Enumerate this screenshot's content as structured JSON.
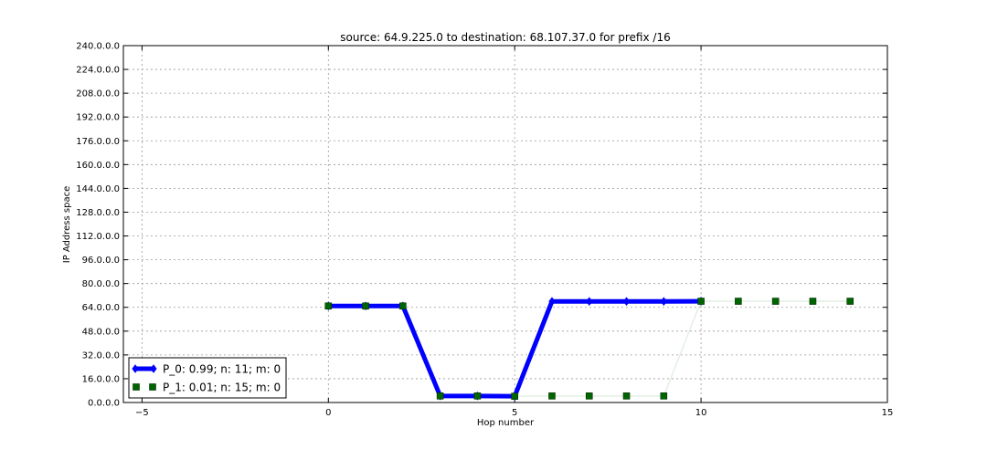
{
  "chart_data": {
    "type": "line",
    "title": "source: 64.9.225.0 to destination: 68.107.37.0 for prefix /16",
    "xlabel": "Hop number",
    "ylabel": "IP Address space",
    "xlim": [
      -5.5,
      15
    ],
    "ylim": [
      0,
      240
    ],
    "x_ticks": [
      -5,
      0,
      5,
      10,
      15
    ],
    "x_tick_labels": [
      "−5",
      "0",
      "5",
      "10",
      "15"
    ],
    "y_ticks": [
      0,
      16,
      32,
      48,
      64,
      80,
      96,
      112,
      128,
      144,
      160,
      176,
      192,
      208,
      224,
      240
    ],
    "y_tick_labels": [
      "0.0.0.0",
      "16.0.0.0",
      "32.0.0.0",
      "48.0.0.0",
      "64.0.0.0",
      "80.0.0.0",
      "96.0.0.0",
      "112.0.0.0",
      "128.0.0.0",
      "144.0.0.0",
      "160.0.0.0",
      "176.0.0.0",
      "192.0.0.0",
      "208.0.0.0",
      "224.0.0.0",
      "240.0.0.0"
    ],
    "grid": true,
    "legend_position": "lower-left",
    "series": [
      {
        "name": "P_0: 0.99; n: 11; m: 0",
        "color": "#0000ff",
        "marker": "diamond",
        "style": "thick-line",
        "x": [
          0,
          1,
          2,
          3,
          4,
          5,
          6,
          7,
          8,
          9,
          10
        ],
        "y": [
          64.9,
          64.9,
          64.9,
          4.4,
          4.4,
          4.2,
          68.0,
          68.0,
          68.0,
          68.0,
          68.1
        ]
      },
      {
        "name": "P_1: 0.01; n: 15; m: 0",
        "color": "#006400",
        "marker": "square",
        "style": "markers-with-faint-line",
        "x": [
          0,
          1,
          2,
          3,
          4,
          5,
          6,
          7,
          8,
          9,
          10,
          11,
          12,
          13,
          14
        ],
        "y": [
          64.9,
          64.9,
          64.9,
          4.4,
          4.4,
          4.2,
          4.4,
          4.4,
          4.4,
          4.4,
          68.1,
          68.1,
          68.1,
          68.1,
          68.1
        ]
      }
    ]
  }
}
